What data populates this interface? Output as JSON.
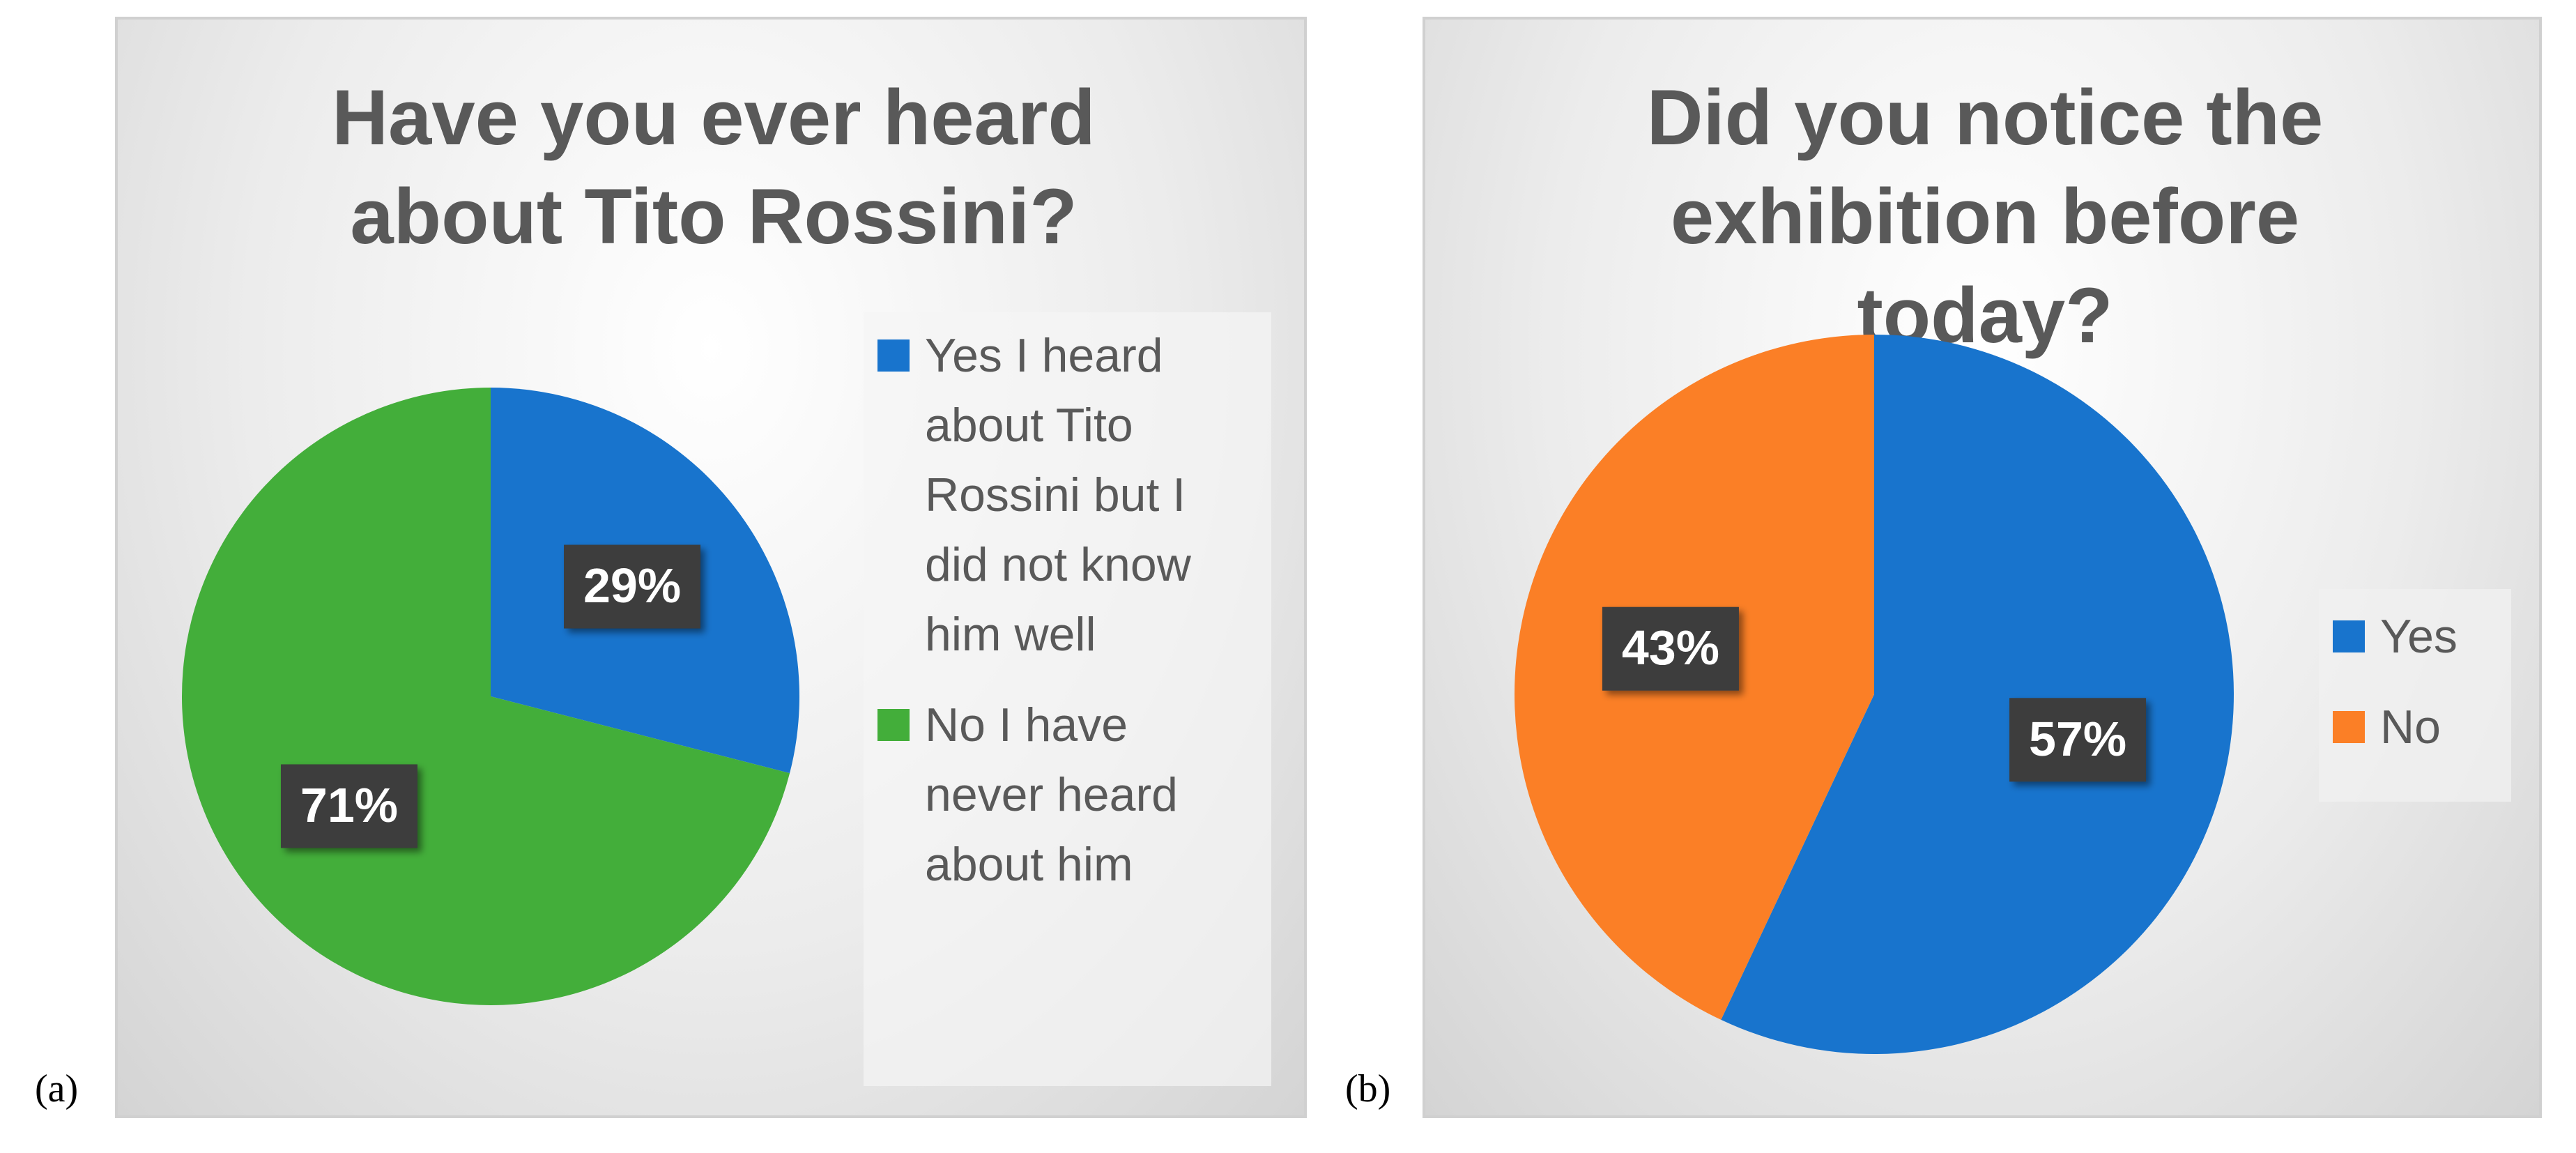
{
  "chart_data": [
    {
      "type": "pie",
      "panel_label": "(a)",
      "title": "Have you ever heard about Tito Rossini?",
      "categories": [
        "Yes I heard about Tito Rossini but I did not know him well",
        "No I have never heard about him"
      ],
      "values": [
        29,
        71
      ],
      "value_labels": [
        "29%",
        "71%"
      ],
      "colors": [
        "#1874cd",
        "#43ae3a"
      ],
      "legend": "right"
    },
    {
      "type": "pie",
      "panel_label": "(b)",
      "title": "Did you notice the exhibition before today?",
      "categories": [
        "Yes",
        "No"
      ],
      "values": [
        57,
        43
      ],
      "value_labels": [
        "57%",
        "43%"
      ],
      "colors": [
        "#1874cd",
        "#fb7f26"
      ],
      "legend": "right"
    }
  ]
}
